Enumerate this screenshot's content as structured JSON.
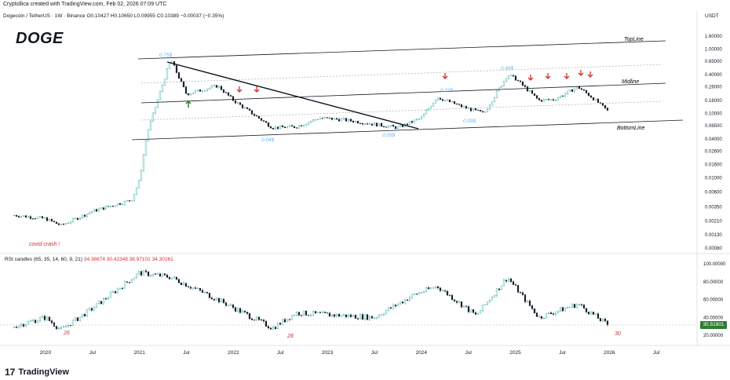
{
  "header": {
    "attribution": "Cryptollica created with TradingView.com, Feb 02, 2026 07:09 UTC",
    "symbol_legend": "Dogecoin / TetherUS · 1W · Binance  O0.10427  H0.10650  L0.09955  C0.10389  −0.00037 (−0.35%)",
    "ticker": "DOGE",
    "unit": "USDT"
  },
  "price_axis": {
    "labels": [
      "1.60000",
      "1.00000",
      "0.65000",
      "0.40000",
      "0.26000",
      "0.16000",
      "0.10000",
      "0.06500",
      "0.04000",
      "0.02600",
      "0.01600",
      "0.01000",
      "0.00600",
      "0.00350",
      "0.00210",
      "0.00130",
      "0.00080"
    ]
  },
  "rsi": {
    "legend_name": "RSI candles (65, 35, 14, 60, 9, 21)",
    "legend_values": "34.36674  30.42348  38.97101  34.30261",
    "axis_labels": [
      "100.00000",
      "80.00000",
      "60.00000",
      "40.00000",
      "20.00000"
    ],
    "last_value": "30.51801",
    "marks": [
      "26",
      "28",
      "30"
    ]
  },
  "time_axis": {
    "labels": [
      "2020",
      "Jul",
      "2021",
      "Jul",
      "2022",
      "Jul",
      "2023",
      "Jul",
      "2024",
      "Jul",
      "2025",
      "Jul",
      "2026",
      "Jul"
    ]
  },
  "annotations": {
    "top_line": "TopLine",
    "midline": "Midline",
    "bottom_line": "BottomLine",
    "covid": "covid crash !",
    "price_labels": [
      "0.75$",
      "0.04$",
      "0.05$",
      "0.22$",
      "0.09$",
      "0.49$"
    ]
  },
  "footer": {
    "brand": "TradingView"
  },
  "colors": {
    "up": "#26a69a",
    "down": "#131722",
    "annotation_red": "#d32f2f",
    "annotation_blue": "#64b5f6",
    "arrow_green": "#2e7d32"
  },
  "chart_data": [
    {
      "type": "line",
      "title": "DOGE",
      "xlabel": "",
      "ylabel": "USDT",
      "scale": "log",
      "ylim": [
        0.0008,
        1.6
      ],
      "x": [
        "2019-09",
        "2020-01",
        "2020-03",
        "2020-07",
        "2020-12",
        "2021-01",
        "2021-02",
        "2021-05",
        "2021-07",
        "2021-11",
        "2022-01",
        "2022-06",
        "2022-09",
        "2022-12",
        "2023-03",
        "2023-07",
        "2023-10",
        "2024-01",
        "2024-03",
        "2024-06",
        "2024-09",
        "2024-12",
        "2025-01",
        "2025-04",
        "2025-06",
        "2025-09",
        "2025-11",
        "2026-01"
      ],
      "series": [
        {
          "values": [
            0.0026,
            0.0023,
            0.0018,
            0.003,
            0.0045,
            0.009,
            0.05,
            0.7,
            0.2,
            0.27,
            0.16,
            0.06,
            0.062,
            0.085,
            0.08,
            0.068,
            0.06,
            0.085,
            0.18,
            0.13,
            0.1,
            0.4,
            0.35,
            0.16,
            0.165,
            0.26,
            0.17,
            0.104
          ]
        }
      ],
      "annotations": [
        "0.75$",
        "0.04$",
        "0.05$",
        "0.22$",
        "0.09$",
        "0.49$",
        "covid crash !",
        "TopLine",
        "Midline",
        "BottomLine"
      ]
    },
    {
      "type": "line",
      "title": "RSI candles (65, 35, 14, 60, 9, 21)",
      "ylim": [
        20,
        100
      ],
      "x": [
        "2019-09",
        "2020-01",
        "2020-03",
        "2020-07",
        "2021-01",
        "2021-05",
        "2021-11",
        "2022-06",
        "2022-09",
        "2023-07",
        "2023-12",
        "2024-03",
        "2024-08",
        "2024-12",
        "2025-04",
        "2025-09",
        "2026-01"
      ],
      "series": [
        {
          "values": [
            30,
            40,
            26,
            50,
            90,
            85,
            60,
            28,
            45,
            40,
            65,
            75,
            42,
            85,
            40,
            55,
            30.5
          ]
        }
      ]
    }
  ]
}
